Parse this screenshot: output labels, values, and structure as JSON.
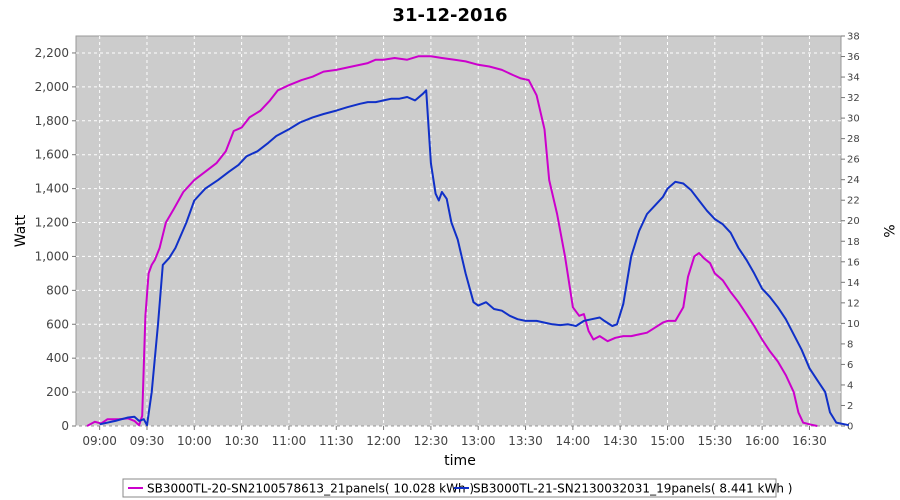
{
  "chart_data": {
    "type": "line",
    "title": "31-12-2016",
    "xlabel": "time",
    "ylabel": "Watt",
    "y2label": "%",
    "ylim": [
      0,
      2300
    ],
    "y2lim": [
      0,
      38
    ],
    "xlim": [
      "08:45",
      "16:50"
    ],
    "grid": true,
    "legend_position": "bottom",
    "x_ticks": [
      "09:00",
      "09:30",
      "10:00",
      "10:30",
      "11:00",
      "11:30",
      "12:00",
      "12:30",
      "13:00",
      "13:30",
      "14:00",
      "14:30",
      "15:00",
      "15:30",
      "16:00",
      "16:30"
    ],
    "y_ticks": [
      "0",
      "200",
      "400",
      "600",
      "800",
      "1,000",
      "1,200",
      "1,400",
      "1,600",
      "1,800",
      "2,000",
      "2,200"
    ],
    "y2_ticks": [
      "0",
      "2",
      "4",
      "6",
      "8",
      "10",
      "12",
      "14",
      "16",
      "18",
      "20",
      "22",
      "24",
      "26",
      "28",
      "30",
      "32",
      "34",
      "36",
      "38"
    ],
    "series": [
      {
        "name": "SB3000TL-20-SN2100578613_21panels( 10.028 kWh )",
        "color": "#cc00cc",
        "points": [
          [
            "08:52",
            0
          ],
          [
            "08:57",
            25
          ],
          [
            "09:01",
            15
          ],
          [
            "09:05",
            40
          ],
          [
            "09:12",
            40
          ],
          [
            "09:18",
            45
          ],
          [
            "09:22",
            30
          ],
          [
            "09:25",
            5
          ],
          [
            "09:27",
            60
          ],
          [
            "09:29",
            650
          ],
          [
            "09:31",
            900
          ],
          [
            "09:33",
            950
          ],
          [
            "09:35",
            980
          ],
          [
            "09:38",
            1050
          ],
          [
            "09:42",
            1200
          ],
          [
            "09:47",
            1280
          ],
          [
            "09:53",
            1380
          ],
          [
            "10:00",
            1450
          ],
          [
            "10:07",
            1500
          ],
          [
            "10:14",
            1550
          ],
          [
            "10:20",
            1620
          ],
          [
            "10:25",
            1740
          ],
          [
            "10:30",
            1760
          ],
          [
            "10:35",
            1820
          ],
          [
            "10:42",
            1860
          ],
          [
            "10:48",
            1920
          ],
          [
            "10:53",
            1980
          ],
          [
            "11:00",
            2010
          ],
          [
            "11:08",
            2040
          ],
          [
            "11:15",
            2060
          ],
          [
            "11:22",
            2090
          ],
          [
            "11:30",
            2100
          ],
          [
            "11:40",
            2120
          ],
          [
            "11:50",
            2140
          ],
          [
            "11:55",
            2160
          ],
          [
            "12:00",
            2160
          ],
          [
            "12:07",
            2170
          ],
          [
            "12:15",
            2160
          ],
          [
            "12:22",
            2180
          ],
          [
            "12:30",
            2180
          ],
          [
            "12:37",
            2170
          ],
          [
            "12:45",
            2160
          ],
          [
            "12:52",
            2150
          ],
          [
            "13:00",
            2130
          ],
          [
            "13:07",
            2120
          ],
          [
            "13:15",
            2100
          ],
          [
            "13:22",
            2070
          ],
          [
            "13:27",
            2050
          ],
          [
            "13:32",
            2040
          ],
          [
            "13:37",
            1950
          ],
          [
            "13:42",
            1750
          ],
          [
            "13:45",
            1450
          ],
          [
            "13:50",
            1250
          ],
          [
            "13:55",
            1000
          ],
          [
            "14:00",
            700
          ],
          [
            "14:04",
            650
          ],
          [
            "14:07",
            660
          ],
          [
            "14:10",
            560
          ],
          [
            "14:13",
            510
          ],
          [
            "14:17",
            530
          ],
          [
            "14:22",
            500
          ],
          [
            "14:27",
            520
          ],
          [
            "14:32",
            530
          ],
          [
            "14:37",
            530
          ],
          [
            "14:42",
            540
          ],
          [
            "14:47",
            550
          ],
          [
            "14:52",
            580
          ],
          [
            "14:57",
            610
          ],
          [
            "15:00",
            620
          ],
          [
            "15:05",
            620
          ],
          [
            "15:10",
            700
          ],
          [
            "15:13",
            880
          ],
          [
            "15:17",
            1000
          ],
          [
            "15:20",
            1020
          ],
          [
            "15:23",
            990
          ],
          [
            "15:27",
            960
          ],
          [
            "15:30",
            900
          ],
          [
            "15:35",
            860
          ],
          [
            "15:40",
            790
          ],
          [
            "15:45",
            730
          ],
          [
            "15:50",
            660
          ],
          [
            "15:55",
            590
          ],
          [
            "16:00",
            510
          ],
          [
            "16:05",
            440
          ],
          [
            "16:10",
            380
          ],
          [
            "16:15",
            300
          ],
          [
            "16:20",
            200
          ],
          [
            "16:23",
            80
          ],
          [
            "16:26",
            20
          ],
          [
            "16:30",
            10
          ],
          [
            "16:35",
            0
          ]
        ]
      },
      {
        "name": "SB3000TL-21-SN2130032031_19panels( 8.441 kWh )",
        "color": "#1030c8",
        "points": [
          [
            "09:00",
            10
          ],
          [
            "09:10",
            30
          ],
          [
            "09:18",
            50
          ],
          [
            "09:22",
            55
          ],
          [
            "09:25",
            30
          ],
          [
            "09:28",
            40
          ],
          [
            "09:30",
            5
          ],
          [
            "09:33",
            200
          ],
          [
            "09:37",
            600
          ],
          [
            "09:40",
            950
          ],
          [
            "09:44",
            990
          ],
          [
            "09:48",
            1050
          ],
          [
            "09:55",
            1200
          ],
          [
            "10:00",
            1330
          ],
          [
            "10:07",
            1400
          ],
          [
            "10:15",
            1450
          ],
          [
            "10:22",
            1500
          ],
          [
            "10:28",
            1540
          ],
          [
            "10:33",
            1590
          ],
          [
            "10:40",
            1620
          ],
          [
            "10:47",
            1670
          ],
          [
            "10:52",
            1710
          ],
          [
            "11:00",
            1750
          ],
          [
            "11:07",
            1790
          ],
          [
            "11:15",
            1820
          ],
          [
            "11:22",
            1840
          ],
          [
            "11:30",
            1860
          ],
          [
            "11:37",
            1880
          ],
          [
            "11:45",
            1900
          ],
          [
            "11:50",
            1910
          ],
          [
            "11:55",
            1910
          ],
          [
            "12:00",
            1920
          ],
          [
            "12:05",
            1930
          ],
          [
            "12:10",
            1930
          ],
          [
            "12:15",
            1940
          ],
          [
            "12:20",
            1920
          ],
          [
            "12:25",
            1960
          ],
          [
            "12:27",
            1980
          ],
          [
            "12:30",
            1550
          ],
          [
            "12:33",
            1370
          ],
          [
            "12:35",
            1330
          ],
          [
            "12:37",
            1380
          ],
          [
            "12:40",
            1340
          ],
          [
            "12:43",
            1200
          ],
          [
            "12:47",
            1100
          ],
          [
            "12:52",
            900
          ],
          [
            "12:57",
            730
          ],
          [
            "13:00",
            710
          ],
          [
            "13:05",
            730
          ],
          [
            "13:10",
            690
          ],
          [
            "13:15",
            680
          ],
          [
            "13:20",
            650
          ],
          [
            "13:25",
            630
          ],
          [
            "13:30",
            620
          ],
          [
            "13:37",
            620
          ],
          [
            "13:42",
            610
          ],
          [
            "13:47",
            600
          ],
          [
            "13:52",
            595
          ],
          [
            "13:57",
            600
          ],
          [
            "14:02",
            590
          ],
          [
            "14:07",
            620
          ],
          [
            "14:12",
            630
          ],
          [
            "14:17",
            640
          ],
          [
            "14:20",
            620
          ],
          [
            "14:25",
            590
          ],
          [
            "14:28",
            600
          ],
          [
            "14:32",
            720
          ],
          [
            "14:37",
            1000
          ],
          [
            "14:42",
            1150
          ],
          [
            "14:47",
            1250
          ],
          [
            "14:52",
            1300
          ],
          [
            "14:57",
            1350
          ],
          [
            "15:00",
            1400
          ],
          [
            "15:05",
            1440
          ],
          [
            "15:10",
            1430
          ],
          [
            "15:15",
            1390
          ],
          [
            "15:20",
            1330
          ],
          [
            "15:25",
            1270
          ],
          [
            "15:30",
            1220
          ],
          [
            "15:35",
            1190
          ],
          [
            "15:40",
            1140
          ],
          [
            "15:45",
            1050
          ],
          [
            "15:50",
            980
          ],
          [
            "15:55",
            900
          ],
          [
            "16:00",
            810
          ],
          [
            "16:05",
            760
          ],
          [
            "16:10",
            700
          ],
          [
            "16:15",
            630
          ],
          [
            "16:20",
            540
          ],
          [
            "16:25",
            450
          ],
          [
            "16:30",
            340
          ],
          [
            "16:35",
            270
          ],
          [
            "16:40",
            200
          ],
          [
            "16:43",
            80
          ],
          [
            "16:47",
            20
          ],
          [
            "16:55",
            5
          ]
        ]
      }
    ]
  }
}
